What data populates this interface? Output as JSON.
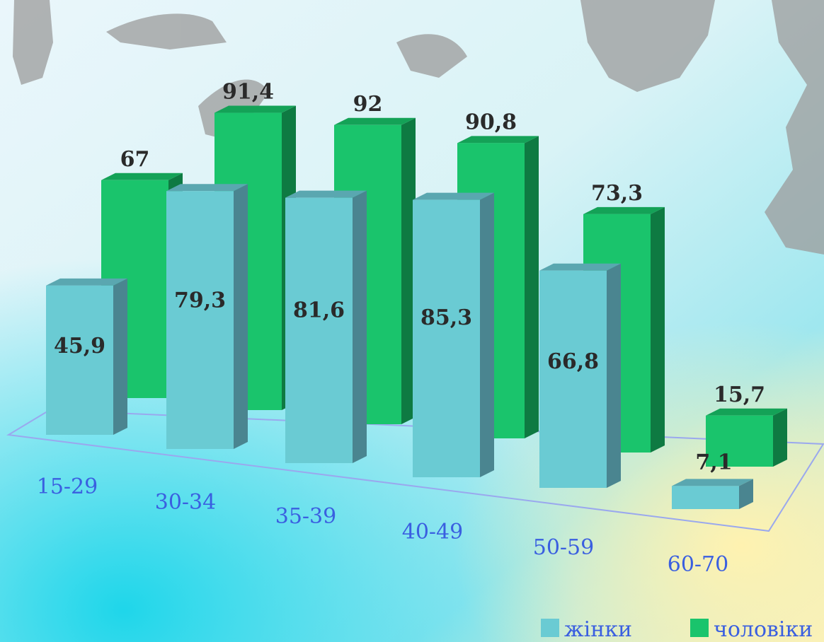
{
  "chart_data": {
    "type": "bar",
    "style": "3d-clustered",
    "categories": [
      "15-29",
      "30-34",
      "35-39",
      "40-49",
      "50-59",
      "60-70"
    ],
    "series": [
      {
        "name": "жінки",
        "values": [
          45.9,
          79.3,
          81.6,
          85.3,
          66.8,
          7.1
        ],
        "labels": [
          "45,9",
          "79,3",
          "81,6",
          "85,3",
          "66,8",
          "7,1"
        ]
      },
      {
        "name": "чоловіки",
        "values": [
          67,
          91.4,
          92,
          90.8,
          73.3,
          15.7
        ],
        "labels": [
          "67",
          "91,4",
          "92",
          "90,8",
          "73,3",
          "15,7"
        ]
      }
    ],
    "ylim": [
      0,
      100
    ],
    "legend_position": "bottom-right",
    "grid": false
  },
  "colors": {
    "women_front": "#6acbd3",
    "women_top": "#5aa7b0",
    "women_side": "#4a8590",
    "men_front": "#1ac46c",
    "men_top": "#14a257",
    "men_side": "#0e7a42",
    "floor_line": "#9aa8ee",
    "label_text": "#2a2a2a",
    "axis_text": "#3a5fe0"
  }
}
